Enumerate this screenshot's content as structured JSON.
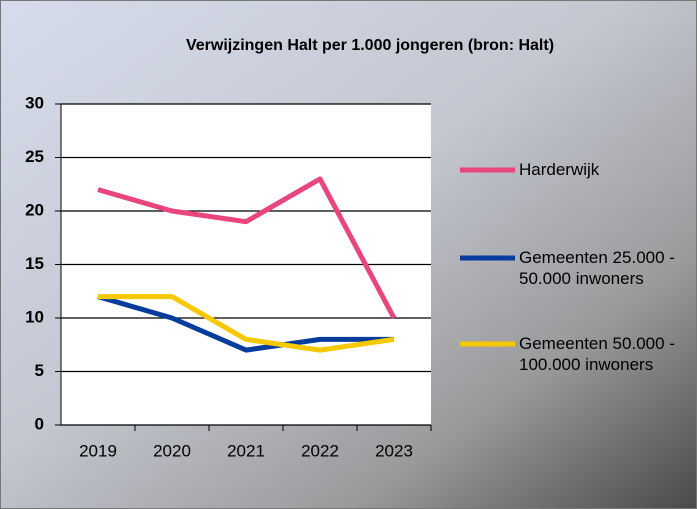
{
  "chart_data": {
    "type": "line",
    "title": "Verwijzingen Halt per 1.000 jongeren (bron: Halt)",
    "categories": [
      "2019",
      "2020",
      "2021",
      "2022",
      "2023"
    ],
    "series": [
      {
        "name": "Harderwijk",
        "color": "#e8467c",
        "values": [
          22,
          20,
          19,
          23,
          10
        ]
      },
      {
        "name": "Gemeenten 25.000 - 50.000 inwoners",
        "color": "#063c9c",
        "values": [
          12,
          10,
          7,
          8,
          8
        ]
      },
      {
        "name": "Gemeenten 50.000 - 100.000 inwoners",
        "color": "#f5c800",
        "values": [
          12,
          12,
          8,
          7,
          8
        ]
      }
    ],
    "ylim": [
      0,
      30
    ],
    "yticks": [
      0,
      5,
      10,
      15,
      20,
      25,
      30
    ],
    "grid": true
  }
}
